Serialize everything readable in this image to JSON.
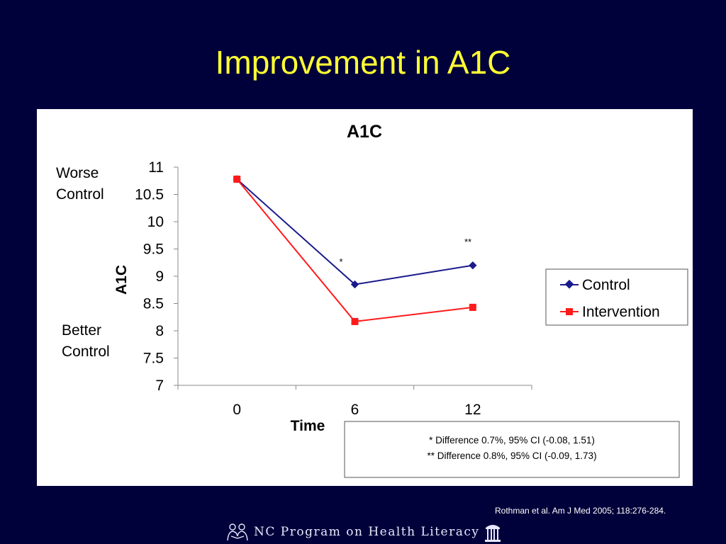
{
  "slide": {
    "title": "Improvement in A1C",
    "citation": "Rothman et al.  Am J Med 2005; 118:276-284.",
    "footer": "NC Program on Health Literacy",
    "footer_icons": [
      "readers-icon",
      "old-well-icon"
    ]
  },
  "chart_data": {
    "type": "line",
    "title": "A1C",
    "xlabel": "Time",
    "ylabel": "A1C",
    "categories": [
      "0",
      "6",
      "12"
    ],
    "ylim": [
      7,
      11
    ],
    "yticks": [
      "7",
      "7.5",
      "8",
      "8.5",
      "9",
      "9.5",
      "10",
      "10.5",
      "11"
    ],
    "grid": false,
    "legend_position": "right",
    "series": [
      {
        "name": "Control",
        "values": [
          10.78,
          8.85,
          9.2
        ],
        "color": "#1a1a8c",
        "marker": "diamond"
      },
      {
        "name": "Intervention",
        "values": [
          10.78,
          8.17,
          8.43
        ],
        "color": "#ff1a1a",
        "marker": "square"
      }
    ],
    "annotations": {
      "worse": [
        "Worse",
        "Control"
      ],
      "better": [
        "Better",
        "Control"
      ],
      "star_6": "*",
      "star_12": "**"
    },
    "notes": [
      "* Difference 0.7%, 95% CI (-0.08, 1.51)",
      "** Difference 0.8%, 95% CI (-0.09, 1.73)"
    ]
  }
}
